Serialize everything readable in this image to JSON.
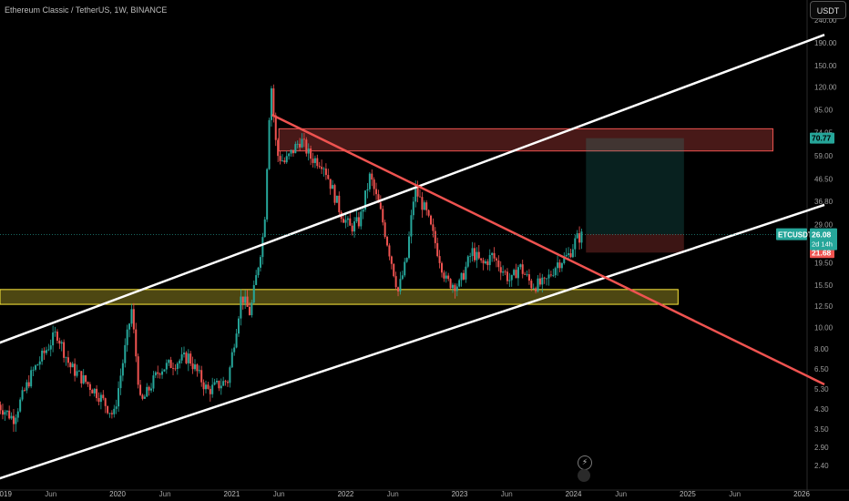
{
  "header": {
    "title": "Ethereum Classic / TetherUS, 1W, BINANCE",
    "currency": "USDT"
  },
  "icons": {
    "replay": "lightning-icon"
  },
  "colors": {
    "background": "#000000",
    "up": "#26a69a",
    "down": "#ef5350",
    "channel": "#ffffff",
    "trendline": "#ef5350",
    "support_zone": "#ffeb3b",
    "resistance_zone": "#ef5350"
  },
  "chart_data": {
    "type": "candlestick",
    "symbol": "ETCUSDT",
    "scale": "log",
    "y_ticks": [
      "240.00",
      "190.00",
      "150.00",
      "120.00",
      "95.00",
      "74.95",
      "59.00",
      "46.50",
      "36.80",
      "29.00",
      "23.50",
      "19.50",
      "15.50",
      "12.50",
      "10.00",
      "8.00",
      "6.50",
      "5.30",
      "4.30",
      "3.50",
      "2.90",
      "2.40"
    ],
    "y_tick_values": [
      240,
      190,
      150,
      120,
      95,
      75,
      59,
      46.5,
      36.8,
      29,
      23.5,
      19.5,
      15.5,
      12.5,
      10,
      8,
      6.5,
      5.3,
      4.3,
      3.5,
      2.9,
      2.4
    ],
    "x_ticks": [
      "2019",
      "Jun",
      "2020",
      "Jun",
      "2021",
      "Jun",
      "2022",
      "Jun",
      "2023",
      "Jun",
      "2024",
      "Jun",
      "2025",
      "Jun",
      "2026"
    ],
    "ylim": [
      2.15,
      290
    ],
    "current_price_label": "ETCUSDT",
    "current_price": "26.08",
    "countdown": "2d 14h",
    "markers": [
      {
        "value": "70.77",
        "numeric": 70.77,
        "role": "take-profit"
      },
      {
        "value": "26.26",
        "numeric": 26.26,
        "role": "entry"
      },
      {
        "value": "21.68",
        "numeric": 21.68,
        "role": "stop-loss"
      }
    ],
    "zones": [
      {
        "name": "resistance",
        "from": "2021-06-01",
        "to": "2025-10-01",
        "low": 62,
        "high": 78
      },
      {
        "name": "support",
        "from": "2018-12-01",
        "to": "2024-12-01",
        "low": 12.7,
        "high": 14.8
      }
    ],
    "position": {
      "from": "2024-02-10",
      "to": "2024-12-20",
      "entry": 26.26,
      "target": 70.77,
      "stop": 21.68
    },
    "lines": [
      {
        "name": "channel-upper",
        "points": [
          [
            "2018-12-01",
            8.35
          ],
          [
            "2026-03-15",
            206
          ]
        ]
      },
      {
        "name": "channel-lower",
        "points": [
          [
            "2018-12-01",
            2.06
          ],
          [
            "2026-03-15",
            35.5
          ]
        ]
      },
      {
        "name": "trendline",
        "points": [
          [
            "2021-05-10",
            90
          ],
          [
            "2026-03-15",
            5.55
          ]
        ]
      }
    ],
    "swings": [
      [
        "2018-12-15",
        4.5
      ],
      [
        "2019-02-01",
        3.9
      ],
      [
        "2019-04-01",
        6.2
      ],
      [
        "2019-06-20",
        9.5
      ],
      [
        "2019-08-01",
        6.7
      ],
      [
        "2019-11-01",
        5.0
      ],
      [
        "2019-12-20",
        4.0
      ],
      [
        "2020-02-15",
        12.0
      ],
      [
        "2020-03-15",
        4.5
      ],
      [
        "2020-05-15",
        6.5
      ],
      [
        "2020-08-15",
        7.4
      ],
      [
        "2020-10-15",
        5.2
      ],
      [
        "2020-12-20",
        5.8
      ],
      [
        "2021-02-01",
        14.0
      ],
      [
        "2021-03-01",
        11.5
      ],
      [
        "2021-04-15",
        28.0
      ],
      [
        "2021-05-06",
        130.0
      ],
      [
        "2021-05-25",
        60.0
      ],
      [
        "2021-06-20",
        55.0
      ],
      [
        "2021-08-10",
        70.0
      ],
      [
        "2021-09-10",
        58.0
      ],
      [
        "2021-10-20",
        55.0
      ],
      [
        "2021-12-15",
        33.0
      ],
      [
        "2022-01-15",
        28.0
      ],
      [
        "2022-02-15",
        30.0
      ],
      [
        "2022-03-20",
        48.0
      ],
      [
        "2022-04-25",
        32.0
      ],
      [
        "2022-06-18",
        14.5
      ],
      [
        "2022-07-15",
        20.0
      ],
      [
        "2022-08-10",
        42.0
      ],
      [
        "2022-09-15",
        33.0
      ],
      [
        "2022-10-15",
        24.0
      ],
      [
        "2022-11-20",
        16.0
      ],
      [
        "2022-12-31",
        15.5
      ],
      [
        "2023-02-10",
        22.0
      ],
      [
        "2023-03-15",
        19.0
      ],
      [
        "2023-04-15",
        21.0
      ],
      [
        "2023-05-15",
        18.5
      ],
      [
        "2023-06-15",
        16.0
      ],
      [
        "2023-07-10",
        19.0
      ],
      [
        "2023-08-20",
        15.5
      ],
      [
        "2023-10-01",
        15.7
      ],
      [
        "2023-11-10",
        19.5
      ],
      [
        "2023-12-15",
        21.0
      ],
      [
        "2024-01-10",
        25.0
      ],
      [
        "2024-02-01",
        26.0
      ]
    ]
  }
}
